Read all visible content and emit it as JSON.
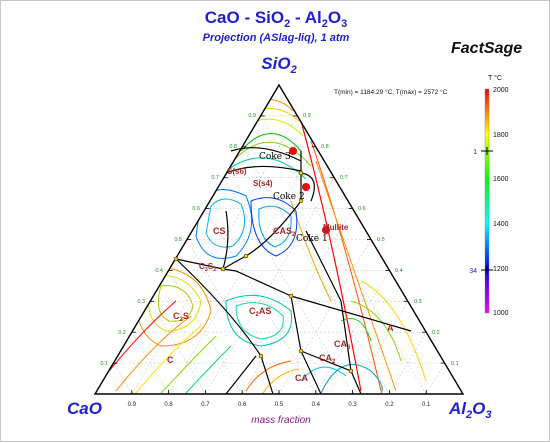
{
  "header": {
    "title_pre": "CaO - SiO",
    "title_sub1": "2",
    "title_mid": " - Al",
    "title_sub2": "2",
    "title_o": "O",
    "title_sub3": "3",
    "subtitle": "Projection (ASlag-liq),  1 atm",
    "brand": "FactSage"
  },
  "vertices": {
    "top": "SiO",
    "top_sub": "2",
    "left": "CaO",
    "right_pre": "Al",
    "right_sub1": "2",
    "right_o": "O",
    "right_sub2": "3"
  },
  "axis": {
    "xlabel": "mass fraction",
    "bottom_ticks": [
      "0.9",
      "0.8",
      "0.7",
      "0.6",
      "0.5",
      "0.4",
      "0.3",
      "0.2",
      "0.1"
    ],
    "left_ticks": [
      "0.1",
      "0.2",
      "0.3",
      "0.4",
      "0.5",
      "0.6",
      "0.7",
      "0.8",
      "0.9"
    ],
    "right_ticks": [
      "0.9",
      "0.8",
      "0.7",
      "0.6",
      "0.5",
      "0.4",
      "0.3",
      "0.2",
      "0.1"
    ]
  },
  "info": {
    "temp_range": "T(min) = 1184.29 °C, T(max) = 2572 °C"
  },
  "colorbar": {
    "unit": "T °C",
    "min": 1000,
    "max": 2000,
    "ticks": [
      "2000",
      "1800",
      "1600",
      "1400",
      "1200",
      "1000"
    ],
    "marker_top": "1",
    "marker_bottom": "34",
    "colors": {
      "c2000": "#ff0000",
      "c1800": "#ffff00",
      "c1600": "#00ff00",
      "c1400": "#00ffff",
      "c1200": "#0000ff",
      "c1000": "#ff00ff"
    }
  },
  "phases": [
    {
      "id": "s6",
      "label": "S(s6)"
    },
    {
      "id": "s4",
      "label": "S(s4)"
    },
    {
      "id": "cs",
      "label": "CS"
    },
    {
      "id": "cas2",
      "label": "CAS",
      "sub": "2"
    },
    {
      "id": "mullite",
      "label": "Mullite"
    },
    {
      "id": "c3s2",
      "label": "C",
      "sub": "3",
      "tail": "S",
      "sub2": "2"
    },
    {
      "id": "c2as",
      "label": "C",
      "sub": "2",
      "tail": "AS"
    },
    {
      "id": "c2s",
      "label": "C",
      "sub": "2",
      "tail": "S"
    },
    {
      "id": "c",
      "label": "C"
    },
    {
      "id": "a",
      "label": "A"
    },
    {
      "id": "ca6",
      "label": "CA",
      "sub": "6"
    },
    {
      "id": "ca2",
      "label": "CA",
      "sub": "2"
    },
    {
      "id": "ca",
      "label": "CA"
    }
  ],
  "cokes": [
    {
      "id": "coke3",
      "label": "Coke 3"
    },
    {
      "id": "coke2",
      "label": "Coke 2"
    },
    {
      "id": "coke1",
      "label": "Coke 1"
    }
  ]
}
